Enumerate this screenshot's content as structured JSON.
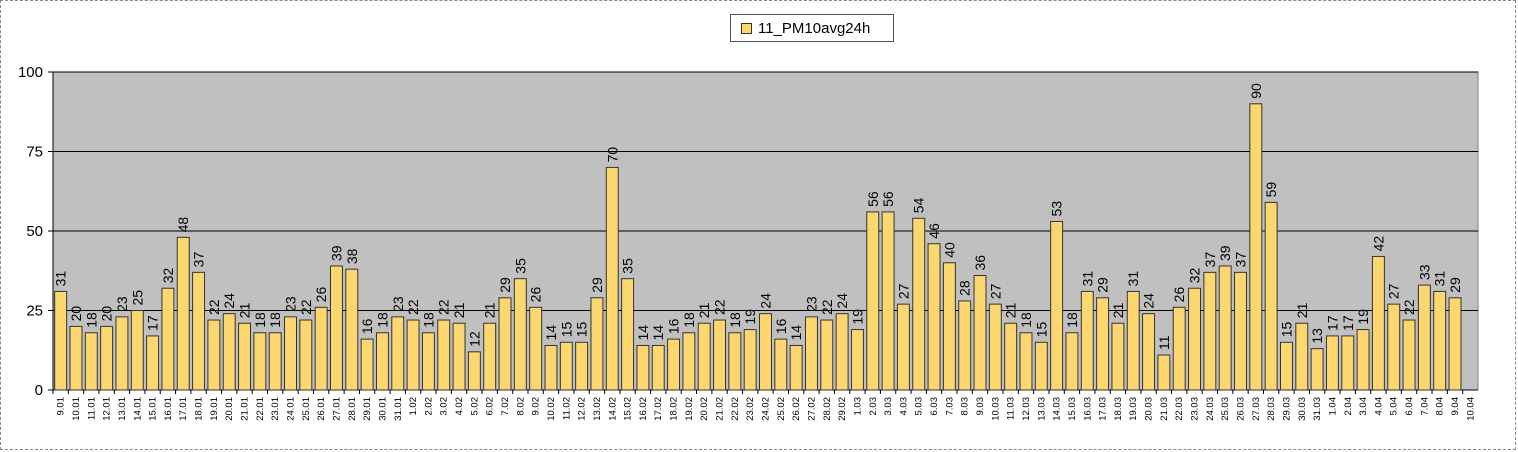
{
  "chart_data": {
    "type": "bar",
    "title": "",
    "xlabel": "",
    "ylabel": "",
    "ylim": [
      0,
      100
    ],
    "yticks": [
      0,
      25,
      50,
      75,
      100
    ],
    "grid": true,
    "legend_position": "top-center",
    "colors": {
      "bar_fill": "#FCD770",
      "bar_stroke": "#333333",
      "plot_bg": "#C0C0C0",
      "grid": "#000000"
    },
    "categories": [
      "9.01",
      "10.01",
      "11.01",
      "12.01",
      "13.01",
      "14.01",
      "15.01",
      "16.01",
      "17.01",
      "18.01",
      "19.01",
      "20.01",
      "21.01",
      "22.01",
      "23.01",
      "24.01",
      "25.01",
      "26.01",
      "27.01",
      "28.01",
      "29.01",
      "30.01",
      "31.01",
      "1.02",
      "2.02",
      "3.02",
      "4.02",
      "5.02",
      "6.02",
      "7.02",
      "8.02",
      "9.02",
      "10.02",
      "11.02",
      "12.02",
      "13.02",
      "14.02",
      "15.02",
      "16.02",
      "17.02",
      "18.02",
      "19.02",
      "20.02",
      "21.02",
      "22.02",
      "23.02",
      "24.02",
      "25.02",
      "26.02",
      "27.02",
      "28.02",
      "29.02",
      "1.03",
      "2.03",
      "3.03",
      "4.03",
      "5.03",
      "6.03",
      "7.03",
      "8.03",
      "9.03",
      "10.03",
      "11.03",
      "12.03",
      "13.03",
      "14.03",
      "15.03",
      "16.03",
      "17.03",
      "18.03",
      "19.03",
      "20.03",
      "21.03",
      "22.03",
      "23.03",
      "24.03",
      "25.03",
      "26.03",
      "27.03",
      "28.03",
      "29.03",
      "30.03",
      "31.03",
      "1.04",
      "2.04",
      "3.04",
      "4.04",
      "5.04",
      "6.04",
      "7.04",
      "8.04",
      "9.04",
      "10.04"
    ],
    "series": [
      {
        "name": "11_PM10avg24h",
        "values": [
          31,
          20,
          18,
          20,
          23,
          25,
          17,
          32,
          48,
          37,
          22,
          24,
          21,
          18,
          18,
          23,
          22,
          26,
          39,
          38,
          16,
          18,
          23,
          22,
          18,
          22,
          21,
          12,
          21,
          29,
          35,
          26,
          14,
          15,
          15,
          29,
          70,
          35,
          14,
          14,
          16,
          18,
          21,
          22,
          18,
          19,
          24,
          16,
          14,
          23,
          22,
          24,
          19,
          56,
          56,
          27,
          54,
          46,
          40,
          28,
          36,
          27,
          21,
          18,
          15,
          53,
          18,
          31,
          29,
          21,
          31,
          24,
          11,
          26,
          32,
          37,
          39,
          37,
          90,
          59,
          15,
          21,
          13,
          17,
          17,
          19,
          42,
          27,
          22,
          33,
          31,
          29,
          null
        ]
      }
    ]
  }
}
